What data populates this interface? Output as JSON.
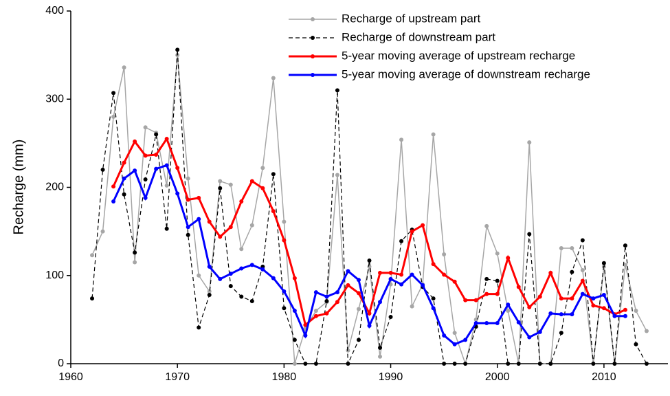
{
  "chart_data": {
    "type": "line",
    "y_label": "Recharge (mm)",
    "x": [
      1962,
      1963,
      1964,
      1965,
      1966,
      1967,
      1968,
      1969,
      1970,
      1971,
      1972,
      1973,
      1974,
      1975,
      1976,
      1977,
      1978,
      1979,
      1980,
      1981,
      1982,
      1983,
      1984,
      1985,
      1986,
      1987,
      1988,
      1989,
      1990,
      1991,
      1992,
      1993,
      1994,
      1995,
      1996,
      1997,
      1998,
      1999,
      2000,
      2001,
      2002,
      2003,
      2004,
      2005,
      2006,
      2007,
      2008,
      2009,
      2010,
      2011,
      2012,
      2013,
      2014
    ],
    "series": [
      {
        "name": "Recharge of upstream part",
        "color": "#a6a6a6",
        "dashed": false,
        "width": 1.5,
        "values": [
          123,
          150,
          280,
          336,
          115,
          268,
          262,
          202,
          350,
          210,
          100,
          82,
          207,
          203,
          130,
          157,
          222,
          324,
          161,
          0,
          40,
          60,
          70,
          214,
          15,
          62,
          110,
          8,
          90,
          254,
          65,
          90,
          260,
          124,
          35,
          0,
          50,
          156,
          125,
          60,
          0,
          251,
          0,
          0,
          131,
          131,
          106,
          0,
          110,
          0,
          112,
          60,
          37
        ]
      },
      {
        "name": "Recharge of downstream part",
        "color": "#000000",
        "dashed": true,
        "width": 1.2,
        "values": [
          74,
          220,
          307,
          192,
          126,
          209,
          260,
          153,
          356,
          146,
          41,
          78,
          199,
          88,
          76,
          71,
          110,
          215,
          63,
          27,
          0,
          0,
          71,
          310,
          0,
          27,
          117,
          18,
          53,
          139,
          152,
          87,
          74,
          0,
          0,
          0,
          42,
          96,
          94,
          0,
          0,
          147,
          0,
          0,
          35,
          104,
          140,
          0,
          114,
          0,
          134,
          22,
          0
        ]
      },
      {
        "name": "5-year moving average of upstream recharge",
        "color": "#ff0000",
        "dashed": false,
        "width": 3,
        "values": [
          null,
          null,
          201,
          228,
          252,
          236,
          237,
          255,
          222,
          186,
          188,
          161,
          144,
          155,
          184,
          207,
          199,
          173,
          140,
          97,
          44,
          54,
          57,
          70,
          89,
          80,
          57,
          103,
          103,
          101,
          150,
          157,
          113,
          101,
          93,
          72,
          72,
          79,
          79,
          120,
          87,
          64,
          76,
          103,
          74,
          74,
          94,
          66,
          63,
          56,
          61,
          null,
          null
        ]
      },
      {
        "name": "5-year moving average of downstream recharge",
        "color": "#0000ff",
        "dashed": false,
        "width": 3,
        "values": [
          null,
          null,
          184,
          210,
          219,
          188,
          221,
          225,
          193,
          155,
          164,
          110,
          96,
          102,
          108,
          112,
          107,
          97,
          82,
          60,
          32,
          81,
          76,
          81,
          105,
          95,
          43,
          70,
          96,
          90,
          101,
          89,
          63,
          32,
          22,
          27,
          46,
          46,
          46,
          67,
          47,
          30,
          36,
          57,
          56,
          56,
          79,
          74,
          78,
          54,
          54,
          null,
          null
        ]
      }
    ],
    "xlim": [
      1960,
      2016
    ],
    "xticks": [
      1960,
      1970,
      1980,
      1990,
      2000,
      2010
    ],
    "ylim": [
      0,
      400
    ],
    "yticks": [
      0,
      100,
      200,
      300,
      400
    ],
    "legend": "top-right"
  }
}
